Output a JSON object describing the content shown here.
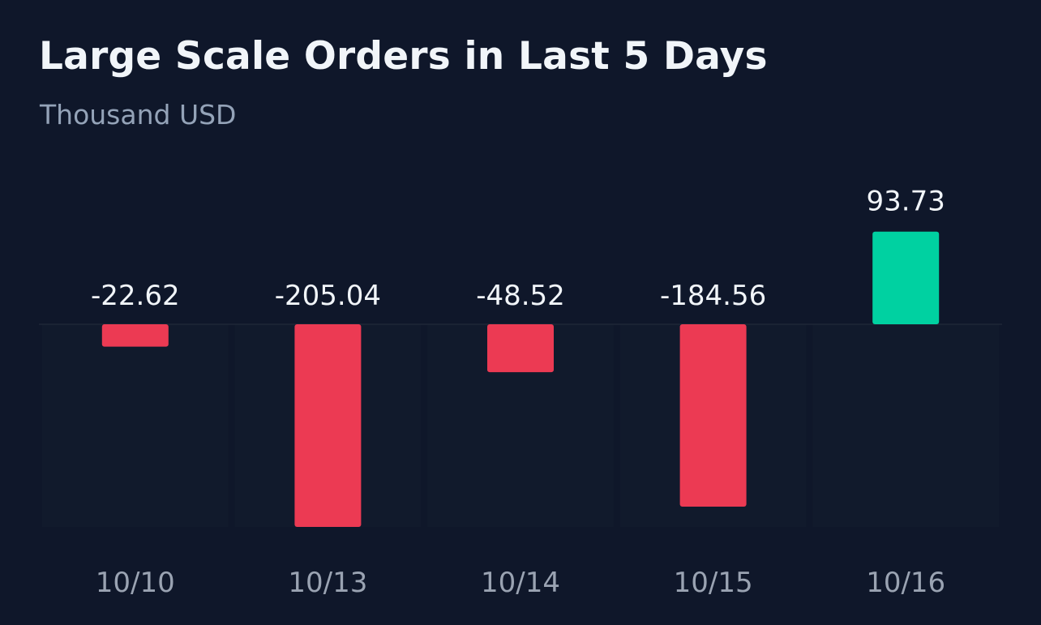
{
  "colors": {
    "background": "#0f172a",
    "positive": "#00d1a1",
    "negative": "#ec3a53",
    "title": "#f1f5f9",
    "subtitle": "#94a3b8",
    "value_label": "#f1f5f9",
    "axis_label": "#9aa3b2",
    "zero_line": "#1e2736"
  },
  "chart_data": {
    "type": "bar",
    "title": "Large Scale Orders in Last 5 Days",
    "subtitle": "Thousand USD",
    "categories": [
      "10/10",
      "10/13",
      "10/14",
      "10/15",
      "10/16"
    ],
    "values": [
      -22.62,
      -205.04,
      -48.52,
      -184.56,
      93.73
    ],
    "value_labels": [
      "-22.62",
      "-205.04",
      "-48.52",
      "-184.56",
      "93.73"
    ],
    "grid": false,
    "legend": "none"
  }
}
